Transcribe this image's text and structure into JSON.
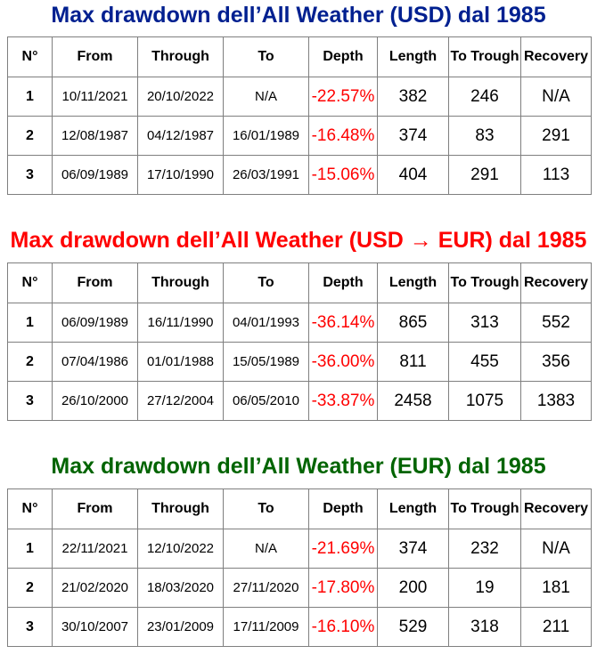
{
  "colors": {
    "usd": "#002090",
    "usd_eur": "#ff0000",
    "eur": "#006400",
    "depth": "#ff0000"
  },
  "headers": [
    "N°",
    "From",
    "Through",
    "To",
    "Depth",
    "Length",
    "To Trough",
    "Recovery"
  ],
  "tables": [
    {
      "title": "Max drawdown dell’All Weather (USD) dal 1985",
      "rows": [
        {
          "n": "1",
          "from": "10/11/2021",
          "through": "20/10/2022",
          "to": "N/A",
          "depth": "-22.57%",
          "length": "382",
          "trough": "246",
          "recovery": "N/A"
        },
        {
          "n": "2",
          "from": "12/08/1987",
          "through": "04/12/1987",
          "to": "16/01/1989",
          "depth": "-16.48%",
          "length": "374",
          "trough": "83",
          "recovery": "291"
        },
        {
          "n": "3",
          "from": "06/09/1989",
          "through": "17/10/1990",
          "to": "26/03/1991",
          "depth": "-15.06%",
          "length": "404",
          "trough": "291",
          "recovery": "113"
        }
      ]
    },
    {
      "title": "Max drawdown dell’All Weather (USD → EUR) dal 1985",
      "rows": [
        {
          "n": "1",
          "from": "06/09/1989",
          "through": "16/11/1990",
          "to": "04/01/1993",
          "depth": "-36.14%",
          "length": "865",
          "trough": "313",
          "recovery": "552"
        },
        {
          "n": "2",
          "from": "07/04/1986",
          "through": "01/01/1988",
          "to": "15/05/1989",
          "depth": "-36.00%",
          "length": "811",
          "trough": "455",
          "recovery": "356"
        },
        {
          "n": "3",
          "from": "26/10/2000",
          "through": "27/12/2004",
          "to": "06/05/2010",
          "depth": "-33.87%",
          "length": "2458",
          "trough": "1075",
          "recovery": "1383"
        }
      ]
    },
    {
      "title": "Max drawdown dell’All Weather (EUR) dal 1985",
      "rows": [
        {
          "n": "1",
          "from": "22/11/2021",
          "through": "12/10/2022",
          "to": "N/A",
          "depth": "-21.69%",
          "length": "374",
          "trough": "232",
          "recovery": "N/A"
        },
        {
          "n": "2",
          "from": "21/02/2020",
          "through": "18/03/2020",
          "to": "27/11/2020",
          "depth": "-17.80%",
          "length": "200",
          "trough": "19",
          "recovery": "181"
        },
        {
          "n": "3",
          "from": "30/10/2007",
          "through": "23/01/2009",
          "to": "17/11/2009",
          "depth": "-16.10%",
          "length": "529",
          "trough": "318",
          "recovery": "211"
        }
      ]
    }
  ]
}
